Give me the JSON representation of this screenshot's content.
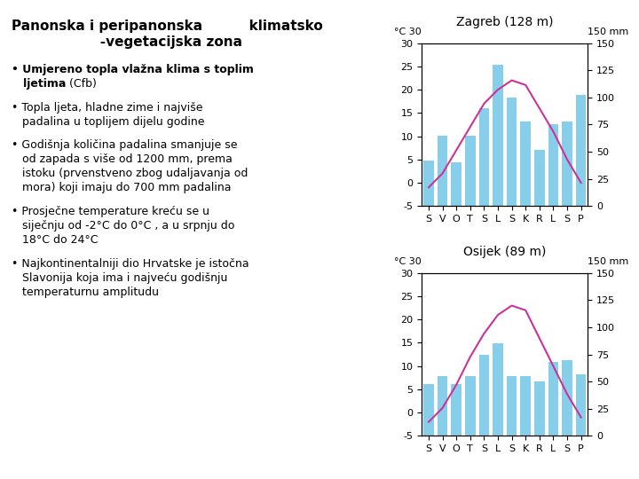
{
  "chart_data": [
    {
      "type": "bar",
      "title": "Zagreb (128 m)",
      "categories": [
        "S",
        "V",
        "O",
        "T",
        "S",
        "L",
        "S",
        "K",
        "R",
        "L",
        "S",
        "P"
      ],
      "series": [
        {
          "type": "bar",
          "axis": "y2",
          "color": "#87CEEB",
          "values": [
            42,
            65,
            40,
            65,
            90,
            130,
            100,
            78,
            52,
            75,
            78,
            102
          ]
        },
        {
          "type": "line",
          "color": "#CC3399",
          "values": [
            -1,
            2,
            7,
            12,
            17,
            20,
            22,
            21,
            16,
            11,
            5,
            0
          ]
        }
      ],
      "ylabel": "°C 30",
      "y2label": "150 mm",
      "ylim": [
        -5,
        30
      ],
      "yticks": [
        -5,
        0,
        5,
        10,
        15,
        20,
        25,
        30
      ],
      "y2lim": [
        0,
        150
      ],
      "y2ticks": [
        0,
        25,
        50,
        75,
        100,
        125,
        150
      ]
    },
    {
      "type": "bar",
      "title": "Osijek (89 m)",
      "categories": [
        "S",
        "V",
        "O",
        "T",
        "S",
        "L",
        "S",
        "K",
        "R",
        "L",
        "S",
        "P"
      ],
      "series": [
        {
          "type": "bar",
          "axis": "y2",
          "color": "#87CEEB",
          "values": [
            48,
            55,
            48,
            55,
            75,
            85,
            55,
            55,
            50,
            68,
            70,
            57
          ]
        },
        {
          "type": "line",
          "color": "#CC3399",
          "values": [
            -2,
            1,
            6,
            12,
            17,
            21,
            23,
            22,
            16,
            10,
            4,
            -1
          ]
        }
      ],
      "ylabel": "°C 30",
      "y2label": "150 mm",
      "ylim": [
        -5,
        30
      ],
      "yticks": [
        -5,
        0,
        5,
        10,
        15,
        20,
        25,
        30
      ],
      "y2lim": [
        0,
        150
      ],
      "y2ticks": [
        0,
        25,
        50,
        75,
        100,
        125,
        150
      ]
    }
  ],
  "annotations": [
    "Panonska i peripanonska          klimatsko\n                   -vegetacijska zona",
    "• Umjereno topla vlažna klima s toplim",
    "   ljetima",
    " (Cfb)",
    "• Topla ljeta, hladne zime i najviše\n   padalina u toplijem dijelu godine",
    "• Godišnja količina padalina smanjuje se\n   od zapada s više od 1200 mm, prema\n   istoku (prvenstveno zbog udaljavanja od\n   mora) koji imaju do 700 mm padalina",
    "• Prosječne temperature kreću se u\n   siječnju od -2°C do 0°C , a u srpnju do\n   18°C do 24°C",
    "• Najkontinentalniji dio Hrvatske je istočna\n   Slavonija koja ima i najveću godišnju\n   temperaturnu amplitudu"
  ]
}
